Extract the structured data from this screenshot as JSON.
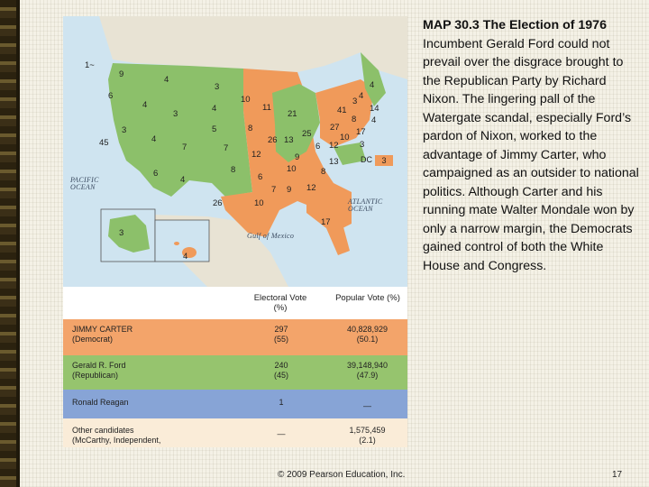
{
  "caption": {
    "map_number": "MAP 30.3",
    "title": "The Election of 1976",
    "body": "Incumbent Gerald Ford could not prevail over the disgrace brought to the Republican Party by Richard Nixon. The lingering pall of the Watergate scandal, especially Ford’s pardon of Nixon, worked to the advantage of Jimmy Carter, who campaigned as an outsider to national politics. Although Carter and his running mate Walter Mondale won by only a narrow margin, the Democrats gained control of both the White House and Congress."
  },
  "map": {
    "colors": {
      "carter": "#f09a5a",
      "ford": "#8cc06a",
      "reagan": "#7f9fd4",
      "water": "#cfe4f0",
      "other_land": "#e8e3d4"
    },
    "sea_labels": {
      "pacific": "PACIFIC OCEAN",
      "atlantic": "ATLANTIC OCEAN",
      "gulf": "Gulf of Mexico"
    },
    "state_votes": [
      {
        "id": "WA",
        "v": "9",
        "party": "ford"
      },
      {
        "id": "WA-faithless",
        "v": "1",
        "party": "reagan"
      },
      {
        "id": "OR",
        "v": "6",
        "party": "ford"
      },
      {
        "id": "CA",
        "v": "45",
        "party": "ford"
      },
      {
        "id": "NV",
        "v": "3",
        "party": "ford"
      },
      {
        "id": "ID",
        "v": "4",
        "party": "ford"
      },
      {
        "id": "MT",
        "v": "4",
        "party": "ford"
      },
      {
        "id": "WY",
        "v": "3",
        "party": "ford"
      },
      {
        "id": "UT",
        "v": "4",
        "party": "ford"
      },
      {
        "id": "AZ",
        "v": "6",
        "party": "ford"
      },
      {
        "id": "CO",
        "v": "7",
        "party": "ford"
      },
      {
        "id": "NM",
        "v": "4",
        "party": "ford"
      },
      {
        "id": "ND",
        "v": "3",
        "party": "ford"
      },
      {
        "id": "SD",
        "v": "4",
        "party": "ford"
      },
      {
        "id": "NE",
        "v": "5",
        "party": "ford"
      },
      {
        "id": "KS",
        "v": "7",
        "party": "ford"
      },
      {
        "id": "OK",
        "v": "8",
        "party": "ford"
      },
      {
        "id": "TX",
        "v": "26",
        "party": "carter"
      },
      {
        "id": "MN",
        "v": "10",
        "party": "carter"
      },
      {
        "id": "IA",
        "v": "8",
        "party": "ford"
      },
      {
        "id": "MO",
        "v": "12",
        "party": "carter"
      },
      {
        "id": "AR",
        "v": "6",
        "party": "carter"
      },
      {
        "id": "LA",
        "v": "10",
        "party": "carter"
      },
      {
        "id": "WI",
        "v": "11",
        "party": "carter"
      },
      {
        "id": "IL",
        "v": "26",
        "party": "ford"
      },
      {
        "id": "MI",
        "v": "21",
        "party": "ford"
      },
      {
        "id": "IN",
        "v": "13",
        "party": "ford"
      },
      {
        "id": "OH",
        "v": "25",
        "party": "carter"
      },
      {
        "id": "KY",
        "v": "9",
        "party": "carter"
      },
      {
        "id": "TN",
        "v": "10",
        "party": "carter"
      },
      {
        "id": "MS",
        "v": "7",
        "party": "carter"
      },
      {
        "id": "AL",
        "v": "9",
        "party": "carter"
      },
      {
        "id": "GA",
        "v": "12",
        "party": "carter"
      },
      {
        "id": "FL",
        "v": "17",
        "party": "carter"
      },
      {
        "id": "SC",
        "v": "8",
        "party": "carter"
      },
      {
        "id": "NC",
        "v": "13",
        "party": "carter"
      },
      {
        "id": "VA",
        "v": "12",
        "party": "ford"
      },
      {
        "id": "WV",
        "v": "6",
        "party": "carter"
      },
      {
        "id": "PA",
        "v": "27",
        "party": "carter"
      },
      {
        "id": "NY",
        "v": "41",
        "party": "carter"
      },
      {
        "id": "VT",
        "v": "3",
        "party": "ford"
      },
      {
        "id": "ME",
        "v": "4",
        "party": "ford"
      },
      {
        "id": "NH",
        "v": "4",
        "party": "ford"
      },
      {
        "id": "MA",
        "v": "14",
        "party": "carter"
      },
      {
        "id": "RI",
        "v": "4",
        "party": "carter"
      },
      {
        "id": "CT",
        "v": "8",
        "party": "ford"
      },
      {
        "id": "NJ",
        "v": "17",
        "party": "ford"
      },
      {
        "id": "DE",
        "v": "3",
        "party": "carter"
      },
      {
        "id": "MD",
        "v": "10",
        "party": "carter"
      },
      {
        "id": "AK",
        "v": "3",
        "party": "ford"
      },
      {
        "id": "HI",
        "v": "4",
        "party": "carter"
      },
      {
        "id": "DC",
        "v": "3",
        "party": "carter"
      }
    ],
    "dc_label": "DC",
    "wa_faithless_marker": "1~"
  },
  "table": {
    "headers": {
      "electoral": "Electoral Vote (%)",
      "popular": "Popular Vote (%)"
    },
    "rows": [
      {
        "name": "JIMMY CARTER",
        "sub": "(Democrat)",
        "ev": "297",
        "ev_pct": "(55)",
        "pv": "40,828,929",
        "pv_pct": "(50.1)",
        "color": "#f3a46a"
      },
      {
        "name": "Gerald R. Ford",
        "sub": "(Republican)",
        "ev": "240",
        "ev_pct": "(45)",
        "pv": "39,148,940",
        "pv_pct": "(47.9)",
        "color": "#96c46e"
      },
      {
        "name": "Ronald Reagan",
        "sub": "",
        "ev": "1",
        "ev_pct": "",
        "pv": "—",
        "pv_pct": "",
        "color": "#87a4d6"
      },
      {
        "name": "Other candidates",
        "sub": "(McCarthy, Independent, Libertarian)",
        "ev": "—",
        "ev_pct": "",
        "pv": "1,575,459",
        "pv_pct": "(2.1)",
        "color": "#faecd8"
      }
    ]
  },
  "footer": {
    "copyright": "© 2009 Pearson Education, Inc.",
    "page": "17"
  }
}
